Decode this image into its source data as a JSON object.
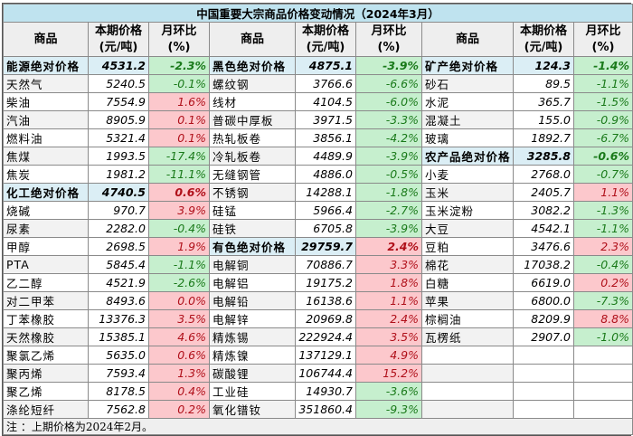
{
  "title": "中国重要大宗商品价格变动情况（2024年3月）",
  "headers": {
    "name": "商品",
    "price_line1": "本期价格",
    "price_line2": "(元/吨)",
    "change_line1": "月环比",
    "change_line2": "(%)"
  },
  "colors": {
    "title_bg": "#bfe3ef",
    "group_bg": "#dbeef5",
    "up_bg": "#fcc8cc",
    "up_text": "#b0101a",
    "down_bg": "#c6efce",
    "down_text": "#1a7a1a"
  },
  "columns": [
    {
      "rows": [
        {
          "name": "能源绝对价格",
          "price": "4531.2",
          "change": "-2.3%",
          "group": true,
          "dir": "down"
        },
        {
          "name": "天然气",
          "price": "5240.5",
          "change": "-0.1%",
          "dir": "down"
        },
        {
          "name": "柴油",
          "price": "7554.9",
          "change": "1.6%",
          "dir": "up"
        },
        {
          "name": "汽油",
          "price": "8905.9",
          "change": "0.1%",
          "dir": "up"
        },
        {
          "name": "燃料油",
          "price": "5321.4",
          "change": "0.1%",
          "dir": "up"
        },
        {
          "name": "焦煤",
          "price": "1993.5",
          "change": "-17.4%",
          "dir": "down"
        },
        {
          "name": "焦炭",
          "price": "1981.2",
          "change": "-11.1%",
          "dir": "down"
        },
        {
          "name": "化工绝对价格",
          "price": "4740.5",
          "change": "0.6%",
          "group": true,
          "dir": "up"
        },
        {
          "name": "烧碱",
          "price": "970.7",
          "change": "3.9%",
          "dir": "up"
        },
        {
          "name": "尿素",
          "price": "2282.0",
          "change": "-0.4%",
          "dir": "down"
        },
        {
          "name": "甲醇",
          "price": "2698.5",
          "change": "1.9%",
          "dir": "up"
        },
        {
          "name": "PTA",
          "price": "5845.4",
          "change": "-1.1%",
          "dir": "down"
        },
        {
          "name": "乙二醇",
          "price": "4521.9",
          "change": "-2.6%",
          "dir": "down"
        },
        {
          "name": "对二甲苯",
          "price": "8493.6",
          "change": "0.0%",
          "dir": "up"
        },
        {
          "name": "丁苯橡胶",
          "price": "13376.3",
          "change": "3.5%",
          "dir": "up"
        },
        {
          "name": "天然橡胶",
          "price": "15385.1",
          "change": "4.6%",
          "dir": "up"
        },
        {
          "name": "聚氯乙烯",
          "price": "5635.0",
          "change": "0.6%",
          "dir": "up"
        },
        {
          "name": "聚丙烯",
          "price": "7593.4",
          "change": "1.3%",
          "dir": "up"
        },
        {
          "name": "聚乙烯",
          "price": "8178.5",
          "change": "0.4%",
          "dir": "up"
        },
        {
          "name": "涤纶短纤",
          "price": "7562.8",
          "change": "0.2%",
          "dir": "up"
        }
      ]
    },
    {
      "rows": [
        {
          "name": "黑色绝对价格",
          "price": "4875.1",
          "change": "-3.9%",
          "group": true,
          "dir": "down"
        },
        {
          "name": "螺纹钢",
          "price": "3766.6",
          "change": "-6.6%",
          "dir": "down"
        },
        {
          "name": "线材",
          "price": "4104.5",
          "change": "-6.0%",
          "dir": "down"
        },
        {
          "name": "普碳中厚板",
          "price": "3971.5",
          "change": "-3.3%",
          "dir": "down"
        },
        {
          "name": "热轧板卷",
          "price": "3856.1",
          "change": "-4.2%",
          "dir": "down"
        },
        {
          "name": "冷轧板卷",
          "price": "4489.9",
          "change": "-3.9%",
          "dir": "down"
        },
        {
          "name": "无缝钢管",
          "price": "4886.0",
          "change": "-0.5%",
          "dir": "down"
        },
        {
          "name": "不锈钢",
          "price": "14288.1",
          "change": "-1.8%",
          "dir": "down"
        },
        {
          "name": "硅锰",
          "price": "5966.4",
          "change": "-2.7%",
          "dir": "down"
        },
        {
          "name": "硅铁",
          "price": "6705.8",
          "change": "-3.9%",
          "dir": "down"
        },
        {
          "name": "有色绝对价格",
          "price": "29759.7",
          "change": "2.4%",
          "group": true,
          "dir": "up"
        },
        {
          "name": "电解铜",
          "price": "70886.7",
          "change": "3.3%",
          "dir": "up"
        },
        {
          "name": "电解铝",
          "price": "19175.2",
          "change": "1.8%",
          "dir": "up"
        },
        {
          "name": "电解铅",
          "price": "16138.6",
          "change": "1.1%",
          "dir": "up"
        },
        {
          "name": "电解锌",
          "price": "20969.8",
          "change": "2.4%",
          "dir": "up"
        },
        {
          "name": "精炼锡",
          "price": "222924.4",
          "change": "3.5%",
          "dir": "up"
        },
        {
          "name": "精炼镍",
          "price": "137129.1",
          "change": "4.9%",
          "dir": "up"
        },
        {
          "name": "碳酸锂",
          "price": "106744.4",
          "change": "15.2%",
          "dir": "up"
        },
        {
          "name": "工业硅",
          "price": "14930.7",
          "change": "-3.6%",
          "dir": "down"
        },
        {
          "name": "氧化镨钕",
          "price": "351860.4",
          "change": "-9.3%",
          "dir": "down"
        }
      ]
    },
    {
      "rows": [
        {
          "name": "矿产绝对价格",
          "price": "124.3",
          "change": "-1.4%",
          "group": true,
          "dir": "down"
        },
        {
          "name": "砂石",
          "price": "89.5",
          "change": "-1.1%",
          "dir": "down"
        },
        {
          "name": "水泥",
          "price": "365.7",
          "change": "-1.5%",
          "dir": "down"
        },
        {
          "name": "混凝土",
          "price": "155.0",
          "change": "-0.9%",
          "dir": "down"
        },
        {
          "name": "玻璃",
          "price": "1892.7",
          "change": "-6.7%",
          "dir": "down"
        },
        {
          "name": "农产品绝对价格",
          "price": "3285.8",
          "change": "-0.6%",
          "group": true,
          "dir": "down"
        },
        {
          "name": "小麦",
          "price": "2768.0",
          "change": "-0.7%",
          "dir": "down"
        },
        {
          "name": "玉米",
          "price": "2405.7",
          "change": "1.1%",
          "dir": "up"
        },
        {
          "name": "玉米淀粉",
          "price": "3082.2",
          "change": "-1.3%",
          "dir": "down"
        },
        {
          "name": "大豆",
          "price": "4542.1",
          "change": "-1.1%",
          "dir": "down"
        },
        {
          "name": "豆粕",
          "price": "3476.6",
          "change": "2.3%",
          "dir": "up"
        },
        {
          "name": "棉花",
          "price": "17038.2",
          "change": "-0.4%",
          "dir": "down"
        },
        {
          "name": "白糖",
          "price": "6619.0",
          "change": "0.2%",
          "dir": "up"
        },
        {
          "name": "苹果",
          "price": "6800.0",
          "change": "-7.3%",
          "dir": "down"
        },
        {
          "name": "棕榈油",
          "price": "8209.9",
          "change": "8.8%",
          "dir": "up"
        },
        {
          "name": "瓦楞纸",
          "price": "2907.0",
          "change": "-1.0%",
          "dir": "down"
        },
        {
          "name": "",
          "price": "",
          "change": "",
          "dir": ""
        },
        {
          "name": "",
          "price": "",
          "change": "",
          "dir": ""
        },
        {
          "name": "",
          "price": "",
          "change": "",
          "dir": ""
        },
        {
          "name": "",
          "price": "",
          "change": "",
          "dir": ""
        }
      ]
    }
  ],
  "note": "注 ：上期价格为2024年2月。"
}
